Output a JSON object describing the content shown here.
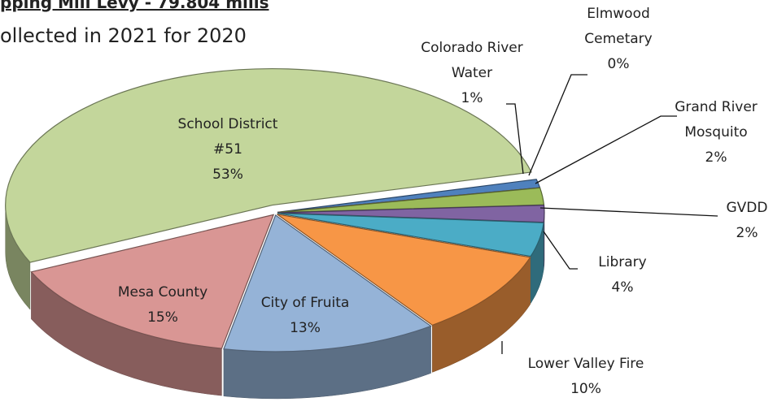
{
  "chart_data": {
    "type": "pie3d",
    "title": "pping Mill Levy - 79.804 mills",
    "subtitle": "ollected in 2021  for 2020",
    "categories": [
      "Colorado River Water",
      "Elmwood Cemetary",
      "Grand River Mosquito",
      "GVDD",
      "Library",
      "Lower Valley Fire",
      "City of Fruita",
      "Mesa County",
      "School District #51"
    ],
    "values": [
      1,
      0,
      2,
      2,
      4,
      10,
      13,
      15,
      53
    ],
    "value_labels": [
      "1%",
      "0%",
      "2%",
      "2%",
      "4%",
      "10%",
      "13%",
      "15%",
      "53%"
    ],
    "colors": [
      "#4f81bd",
      "#c0504d",
      "#9bbb59",
      "#8064a2",
      "#4bacc6",
      "#f79646",
      "#95b3d7",
      "#d99694",
      "#c3d69b"
    ]
  }
}
